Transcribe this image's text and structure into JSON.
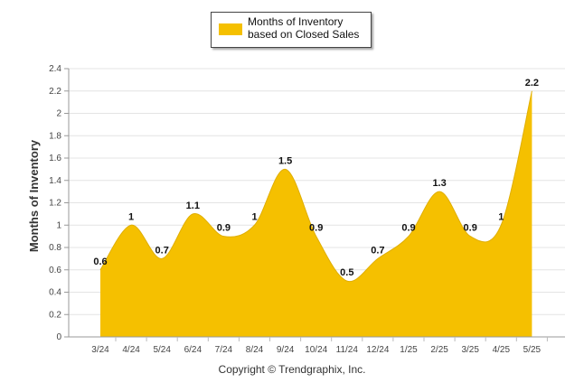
{
  "chart_data": {
    "type": "area",
    "categories": [
      "3/24",
      "4/24",
      "5/24",
      "6/24",
      "7/24",
      "8/24",
      "9/24",
      "10/24",
      "11/24",
      "12/24",
      "1/25",
      "2/25",
      "3/25",
      "4/25",
      "5/25"
    ],
    "series": [
      {
        "name": "Months of Inventory based on Closed Sales",
        "values": [
          0.6,
          1,
          0.7,
          1.1,
          0.9,
          1,
          1.5,
          0.9,
          0.5,
          0.7,
          0.9,
          1.3,
          0.9,
          1,
          2.2
        ],
        "color": "#f5c000"
      }
    ],
    "data_labels": [
      "0.6",
      "1",
      "0.7",
      "1.1",
      "0.9",
      "1",
      "1.5",
      "0.9",
      "0.5",
      "0.7",
      "0.9",
      "1.3",
      "0.9",
      "1",
      "2.2"
    ],
    "ylabel": "Months of Inventory",
    "xlabel": "",
    "ylim": [
      0,
      2.4
    ],
    "yticks": [
      "0",
      "0.2",
      "0.4",
      "0.6",
      "0.8",
      "1",
      "1.2",
      "1.4",
      "1.6",
      "1.8",
      "2",
      "2.2",
      "2.4"
    ],
    "grid": true,
    "legend_position": "top-center"
  },
  "legend": {
    "label": "Months of Inventory based on Closed Sales",
    "swatch_color": "#f5c000"
  },
  "footer": {
    "copyright": "Copyright © Trendgraphix, Inc."
  }
}
